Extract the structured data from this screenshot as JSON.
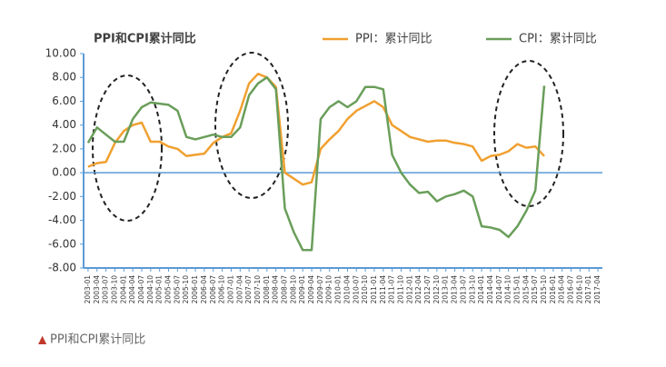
{
  "chart_data": {
    "type": "line",
    "title": "PPI和CPI累计同比",
    "caption": "PPI和CPI累计同比",
    "categories": [
      "2003-01",
      "2003-04",
      "2003-07",
      "2003-10",
      "2004-01",
      "2004-04",
      "2004-07",
      "2004-10",
      "2005-01",
      "2005-04",
      "2005-07",
      "2005-10",
      "2006-01",
      "2006-04",
      "2006-07",
      "2006-10",
      "2007-01",
      "2007-04",
      "2007-07",
      "2007-10",
      "2008-01",
      "2008-04",
      "2008-07",
      "2008-10",
      "2009-01",
      "2009-04",
      "2009-07",
      "2009-10",
      "2010-01",
      "2010-04",
      "2010-07",
      "2010-10",
      "2011-01",
      "2011-04",
      "2011-07",
      "2011-10",
      "2012-01",
      "2012-04",
      "2012-07",
      "2012-10",
      "2013-01",
      "2013-04",
      "2013-07",
      "2013-10",
      "2014-01",
      "2014-04",
      "2014-07",
      "2014-10",
      "2015-01",
      "2015-04",
      "2015-07",
      "2015-10",
      "2016-01",
      "2016-04",
      "2016-07",
      "2016-10",
      "2017-01",
      "2017-04"
    ],
    "series": [
      {
        "name": "PPI：累计同比",
        "color": "#f0a030",
        "values": [
          0.5,
          0.8,
          0.9,
          2.5,
          3.5,
          4.0,
          4.2,
          2.6,
          2.6,
          2.2,
          2.0,
          1.4,
          1.5,
          1.6,
          2.5,
          3.0,
          3.3,
          5.2,
          7.5,
          8.3,
          8.0,
          7.2,
          0.0,
          -0.5,
          -1.0,
          -0.8,
          2.0,
          2.8,
          3.5,
          4.5,
          5.2,
          5.6,
          6.0,
          5.5,
          4.0,
          3.5,
          3.0,
          2.8,
          2.6,
          2.7,
          2.7,
          2.5,
          2.4,
          2.2,
          1.0,
          1.4,
          1.5,
          1.8,
          2.4,
          2.1,
          2.2,
          1.4,
          null,
          null,
          null,
          null,
          null,
          null
        ]
      },
      {
        "name": "CPI：累计同比",
        "color": "#6a9e5a",
        "values": [
          2.5,
          3.8,
          3.2,
          2.6,
          2.6,
          4.5,
          5.5,
          5.9,
          5.8,
          5.7,
          5.2,
          3.0,
          2.8,
          3.0,
          3.2,
          3.0,
          3.0,
          3.8,
          6.5,
          7.5,
          8.0,
          7.0,
          -3.0,
          -5.0,
          -6.5,
          -6.5,
          4.5,
          5.5,
          6.0,
          5.5,
          6.0,
          7.2,
          7.2,
          7.0,
          1.5,
          0.0,
          -1.0,
          -1.7,
          -1.6,
          -2.4,
          -2.0,
          -1.8,
          -1.5,
          -2.0,
          -4.5,
          -4.6,
          -4.8,
          -5.4,
          -4.5,
          -3.2,
          -1.5,
          7.3,
          null,
          null,
          null,
          null,
          null,
          null
        ]
      }
    ],
    "ylim": [
      -8,
      10
    ],
    "yticks": [
      {
        "value": -8,
        "label": "-8.00"
      },
      {
        "value": -6,
        "label": "-6.00"
      },
      {
        "value": -4,
        "label": "-4.00"
      },
      {
        "value": -2,
        "label": "-2.00"
      },
      {
        "value": 0,
        "label": "0.00"
      },
      {
        "value": 2,
        "label": "2.00"
      },
      {
        "value": 4,
        "label": "4.00"
      },
      {
        "value": 6,
        "label": "6.00"
      },
      {
        "value": 8,
        "label": "8.00"
      },
      {
        "value": 10,
        "label": "10.00"
      }
    ],
    "legend": "top-right"
  }
}
